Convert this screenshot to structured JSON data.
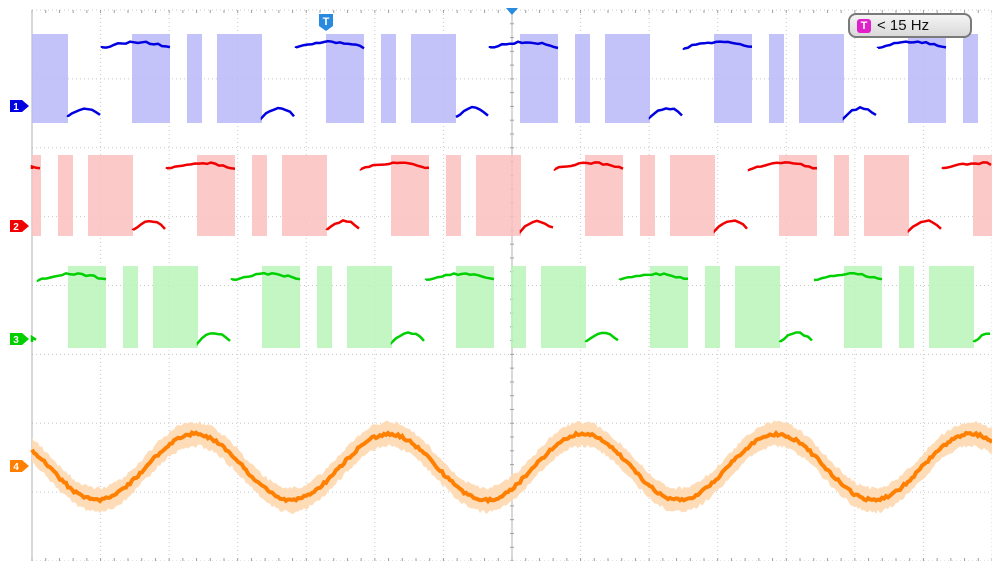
{
  "trigger": {
    "label": "T",
    "frequency_text": "< 15 Hz",
    "badge_icon": "trigger-t-icon",
    "badge_icon_color": "#e020c8"
  },
  "chart_data": {
    "type": "line",
    "title": "",
    "xlabel": "",
    "ylabel": "",
    "grid": true,
    "channels": [
      {
        "label": "1",
        "color": "#0000e0",
        "envelope_color": "#b8b8f8",
        "kind": "pwm",
        "state": "high-gated"
      },
      {
        "label": "2",
        "color": "#f00000",
        "envelope_color": "#fbc0c0",
        "kind": "pwm",
        "state": "high-gated"
      },
      {
        "label": "3",
        "color": "#00d000",
        "envelope_color": "#b8f4b8",
        "kind": "pwm",
        "state": "high-gated"
      },
      {
        "label": "4",
        "color": "#ff7f00",
        "envelope_color": "#ffd8b0",
        "kind": "sine",
        "cycles_visible": 5
      }
    ]
  }
}
